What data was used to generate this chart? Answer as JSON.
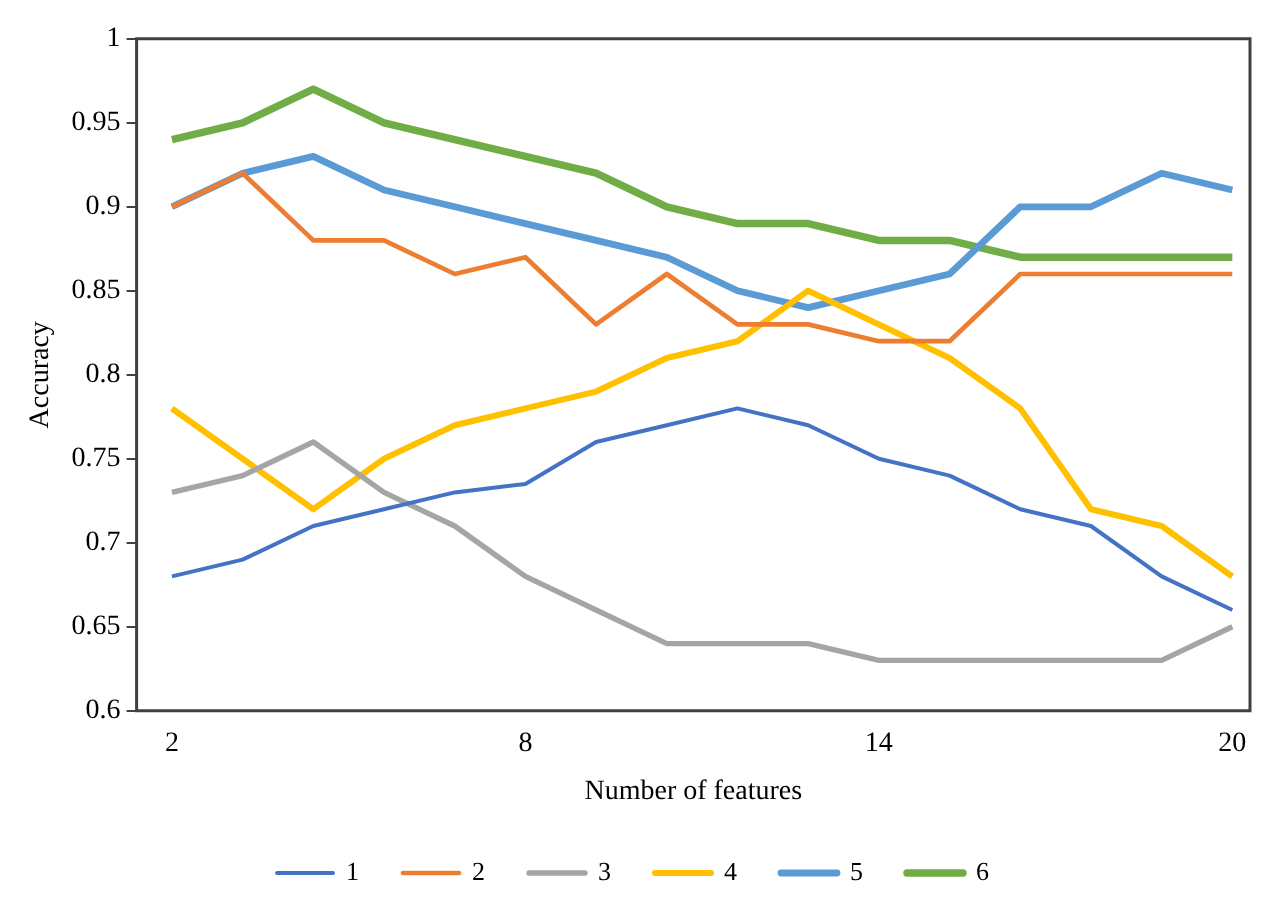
{
  "chart_data": {
    "type": "line",
    "xlabel": "Number of features",
    "ylabel": "Accuracy",
    "x": [
      2,
      3.2,
      4.4,
      5.6,
      6.8,
      8,
      9.2,
      10.4,
      11.6,
      12.8,
      14,
      15.2,
      16.4,
      17.6,
      18.8,
      20
    ],
    "series": [
      {
        "name": "1",
        "color": "#4472c4",
        "values": [
          0.68,
          0.69,
          0.71,
          0.72,
          0.73,
          0.735,
          0.76,
          0.77,
          0.78,
          0.77,
          0.75,
          0.74,
          0.72,
          0.71,
          0.68,
          0.66
        ]
      },
      {
        "name": "2",
        "color": "#ed7d31",
        "values": [
          0.9,
          0.92,
          0.88,
          0.88,
          0.86,
          0.87,
          0.83,
          0.86,
          0.83,
          0.83,
          0.82,
          0.82,
          0.86,
          0.86,
          0.86,
          0.86
        ]
      },
      {
        "name": "3",
        "color": "#a5a5a5",
        "values": [
          0.73,
          0.74,
          0.76,
          0.73,
          0.71,
          0.68,
          0.66,
          0.64,
          0.64,
          0.64,
          0.63,
          0.63,
          0.63,
          0.63,
          0.63,
          0.65
        ]
      },
      {
        "name": "4",
        "color": "#ffc000",
        "values": [
          0.78,
          0.75,
          0.72,
          0.75,
          0.77,
          0.78,
          0.79,
          0.81,
          0.82,
          0.85,
          0.83,
          0.81,
          0.78,
          0.72,
          0.71,
          0.68
        ]
      },
      {
        "name": "5",
        "color": "#5b9bd5",
        "values": [
          0.9,
          0.92,
          0.93,
          0.91,
          0.9,
          0.89,
          0.88,
          0.87,
          0.85,
          0.84,
          0.85,
          0.86,
          0.9,
          0.9,
          0.92,
          0.91
        ]
      },
      {
        "name": "6",
        "color": "#70ad47",
        "values": [
          0.94,
          0.95,
          0.97,
          0.95,
          0.94,
          0.93,
          0.92,
          0.9,
          0.89,
          0.89,
          0.88,
          0.88,
          0.87,
          0.87,
          0.87,
          0.87
        ]
      }
    ],
    "xlim": [
      1.4,
      20.3
    ],
    "xticks": [
      2,
      8,
      14,
      20
    ],
    "ylim": [
      0.6,
      1
    ],
    "yticks": [
      0.6,
      0.65,
      0.7,
      0.75,
      0.8,
      0.85,
      0.9,
      0.95,
      1
    ],
    "grid": false,
    "legend": "bottom",
    "marker": "none",
    "line_style": "solid"
  }
}
